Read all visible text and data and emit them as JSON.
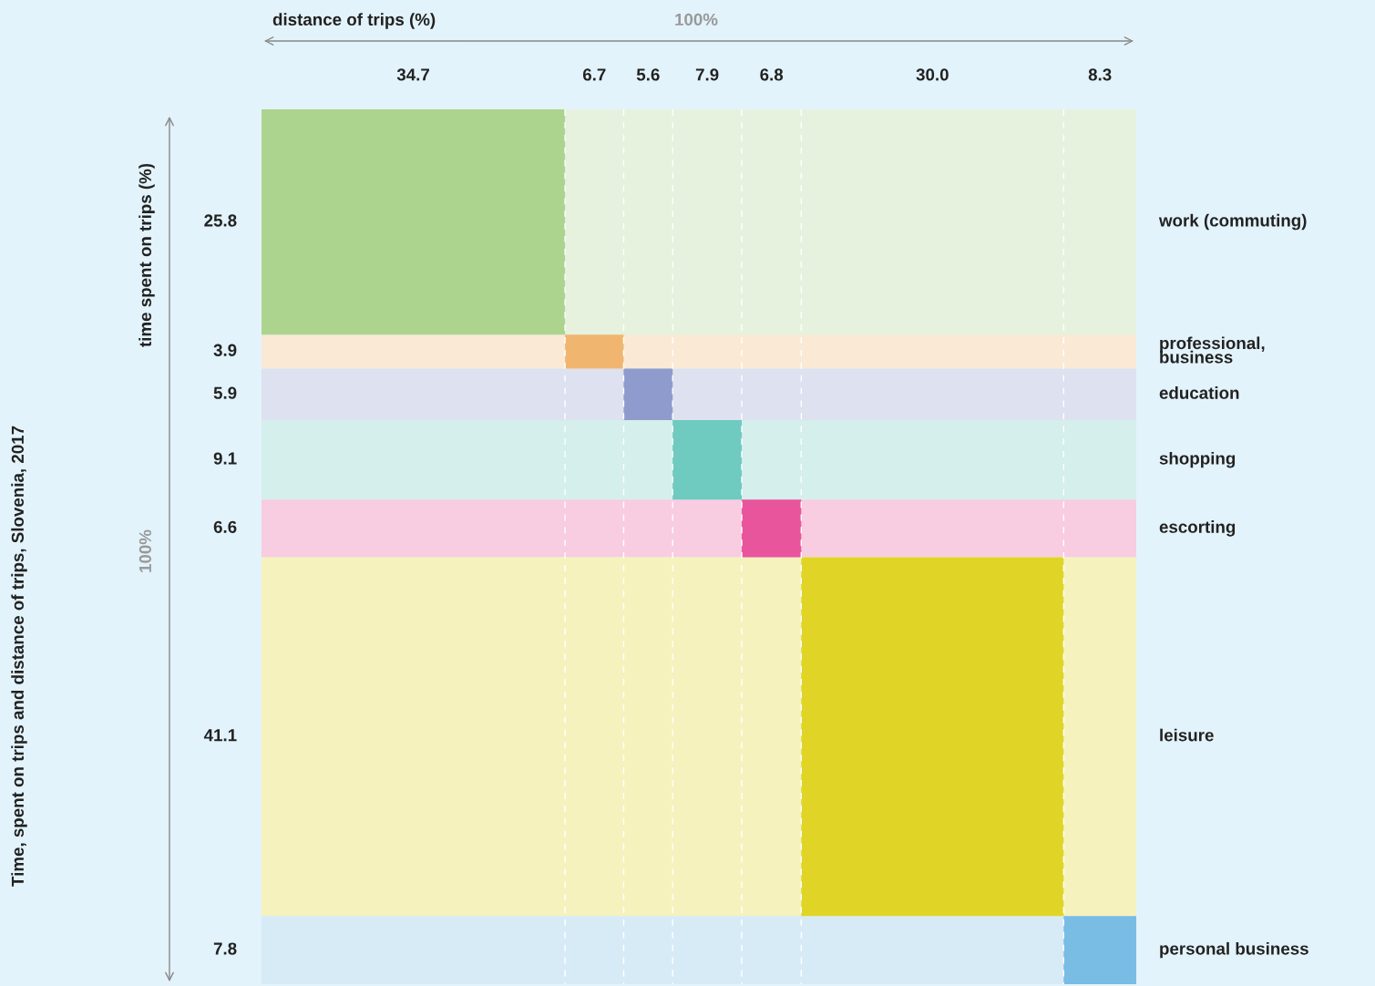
{
  "chart_data": [
    {
      "type": "other",
      "title": "Time, spent on trips and distance of trips, Slovenia, 2017",
      "ylabel": "time spent on trips (%)",
      "annotations": [
        "100%"
      ],
      "categories": [
        "work (commuting)",
        "professional,\nbusiness",
        "education",
        "shopping",
        "escorting",
        "leisure",
        "personal business"
      ],
      "values": [
        25.8,
        3.9,
        5.9,
        9.1,
        6.6,
        41.1,
        7.8
      ],
      "colors": [
        "#acd48e",
        "#f0b670",
        "#8f9bcc",
        "#6fcac0",
        "#e8559c",
        "#e0d526",
        "#79bce4"
      ],
      "data_labels": true
    },
    {
      "type": "other",
      "xlabel": "distance of trips (%)",
      "annotations": [
        "100%"
      ],
      "categories": [
        null,
        null,
        null,
        null,
        null,
        null,
        null
      ],
      "values": [
        34.7,
        6.7,
        5.6,
        7.9,
        6.8,
        30.0,
        8.3
      ],
      "value_labels": [
        "34.7",
        "6.7",
        "5.6",
        "7.9",
        "6.8",
        "30.0",
        "8.3"
      ]
    }
  ]
}
